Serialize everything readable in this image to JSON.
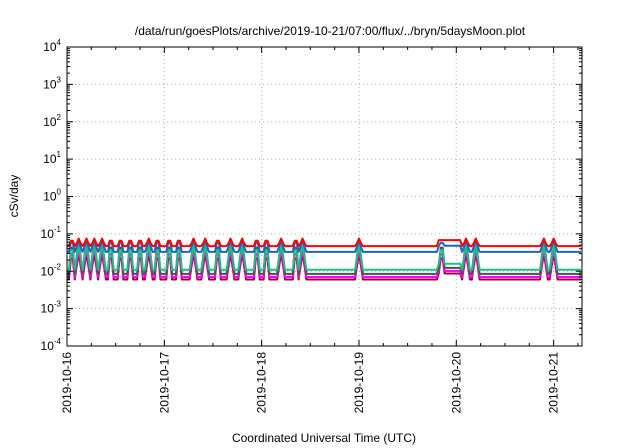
{
  "chart_data": {
    "type": "line",
    "title": "/data/run/goesPlots/archive/2019-10-21/07:00/flux/../bryn/5daysMoon.plot",
    "xlabel": "Coordinated Universal Time (UTC)",
    "ylabel": "cSv/day",
    "y_scale": "log",
    "ylim": [
      0.0001,
      10000
    ],
    "xlim": [
      "2019-10-16",
      "2019-10-21 07:00"
    ],
    "grid": true,
    "y_ticks": [
      {
        "base": "10",
        "exp": "-4"
      },
      {
        "base": "10",
        "exp": "-3"
      },
      {
        "base": "10",
        "exp": "-2"
      },
      {
        "base": "10",
        "exp": "-1"
      },
      {
        "base": "10",
        "exp": "0"
      },
      {
        "base": "10",
        "exp": "1"
      },
      {
        "base": "10",
        "exp": "2"
      },
      {
        "base": "10",
        "exp": "3"
      },
      {
        "base": "10",
        "exp": "4"
      }
    ],
    "x_ticks": [
      "2019-10-16",
      "2019-10-17",
      "2019-10-18",
      "2019-10-19",
      "2019-10-20",
      "2019-10-21"
    ],
    "series": [
      {
        "color": "#ff0000",
        "base": 0.047,
        "spike": 0.075
      },
      {
        "color": "#1e64c8",
        "base": 0.033,
        "spike": 0.07
      },
      {
        "color": "#1fbf7f",
        "base": 0.011,
        "spike": 0.05
      },
      {
        "color": "#505050",
        "base": 0.0085,
        "spike": 0.06
      },
      {
        "color": "#ff00ff",
        "base": 0.007,
        "spike": 0.04
      },
      {
        "color": "#a00040",
        "base": 0.006,
        "spike": 0.03
      }
    ],
    "spike_days": [
      0.05,
      0.12,
      0.2,
      0.28,
      0.36,
      0.45,
      0.55,
      0.65,
      0.75,
      0.84,
      0.93,
      1.05,
      1.15,
      1.3,
      1.42,
      1.55,
      1.68,
      1.8,
      1.95,
      2.05,
      2.2,
      2.35,
      2.42,
      3.0,
      3.85,
      4.1,
      4.2,
      4.9,
      5.0
    ]
  }
}
